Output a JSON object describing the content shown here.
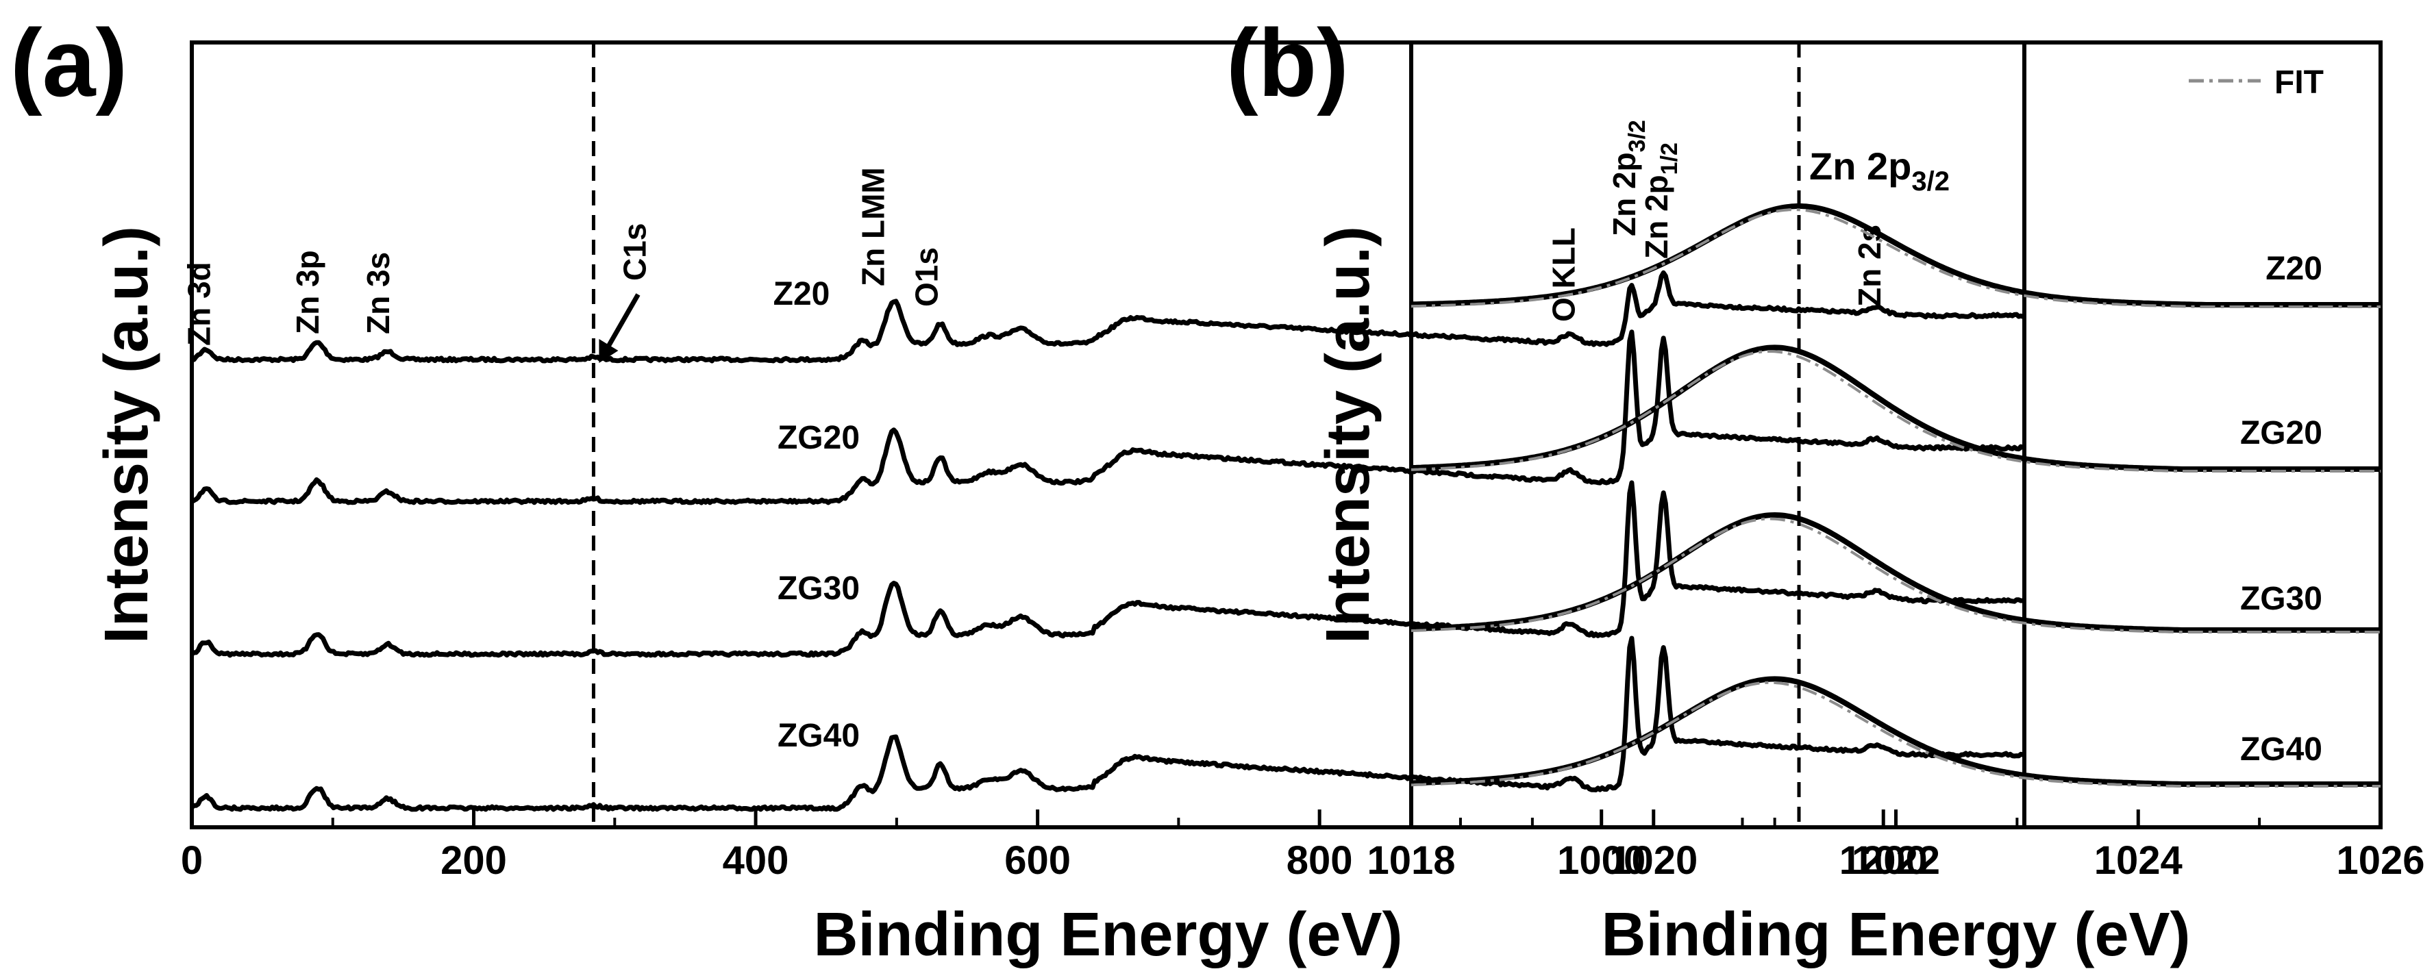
{
  "chart_data": [
    {
      "panel": "(a)",
      "type": "line",
      "xlabel": "Binding Energy (eV)",
      "ylabel": "Intensity (a.u.)",
      "xlim": [
        0,
        1300
      ],
      "xticks": [
        0,
        200,
        400,
        600,
        800,
        1000,
        1200
      ],
      "xtick_labels": [
        "0",
        "200",
        "400",
        "600",
        "800",
        "1000",
        "1200"
      ],
      "yticks": "none",
      "reference_line": {
        "x": 285,
        "style": "dashed"
      },
      "series": [
        {
          "name": "Z20",
          "label": "Z20",
          "offset": 3
        },
        {
          "name": "ZG20",
          "label": "ZG20",
          "offset": 2
        },
        {
          "name": "ZG30",
          "label": "ZG30",
          "offset": 1
        },
        {
          "name": "ZG40",
          "label": "ZG40",
          "offset": 0
        }
      ],
      "peaks": [
        {
          "label": "Zn 3d",
          "x": 10
        },
        {
          "label": "Zn 3p",
          "x": 89
        },
        {
          "label": "Zn 3s",
          "x": 139
        },
        {
          "label": "C1s",
          "x": 285
        },
        {
          "label": "Zn LMM",
          "x": 498
        },
        {
          "label": "O1s",
          "x": 531
        },
        {
          "label": "O KLL",
          "x": 978
        },
        {
          "label": "Zn 2p",
          "sub": "3/2",
          "x": 1021
        },
        {
          "label": "Zn 2p",
          "sub": "1/2",
          "x": 1044
        },
        {
          "label": "Zn 2s",
          "x": 1195
        }
      ]
    },
    {
      "panel": "(b)",
      "type": "line",
      "xlabel": "Binding Energy (eV)",
      "ylabel": "Intensity (a.u.)",
      "xlim": [
        1018,
        1026
      ],
      "xticks": [
        1018,
        1020,
        1022,
        1024,
        1026
      ],
      "xtick_labels": [
        "1018",
        "1020",
        "1022",
        "1024",
        "1026"
      ],
      "yticks": "none",
      "reference_line": {
        "x": 1021.2,
        "style": "dashed",
        "label": "Zn 2p",
        "sub": "3/2"
      },
      "legend": {
        "entry": "FIT",
        "style": "dash-dot grey",
        "placement": "top-right"
      },
      "series": [
        {
          "name": "Z20",
          "label": "Z20",
          "center": 1021.2,
          "offset": 3
        },
        {
          "name": "ZG20",
          "label": "ZG20",
          "center": 1021.0,
          "offset": 2
        },
        {
          "name": "ZG30",
          "label": "ZG30",
          "center": 1021.0,
          "offset": 1
        },
        {
          "name": "ZG40",
          "label": "ZG40",
          "center": 1021.0,
          "offset": 0
        }
      ]
    }
  ]
}
